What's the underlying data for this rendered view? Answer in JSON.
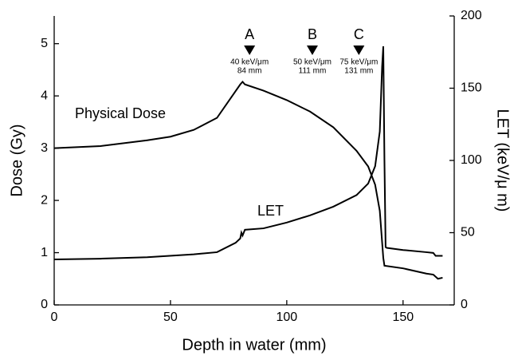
{
  "chart_data": {
    "type": "line",
    "x_label": "Depth in water (mm)",
    "y_label": "Dose (Gy)",
    "y2_label": "LET (keV/μ m)",
    "xlim": [
      0,
      172
    ],
    "xticks": [
      0,
      50,
      100,
      150
    ],
    "ylim": [
      0,
      5.53
    ],
    "yticks": [
      0,
      1,
      2,
      3,
      4,
      5
    ],
    "y2lim": [
      0,
      200
    ],
    "y2ticks": [
      0,
      50,
      100,
      150,
      200
    ],
    "series": [
      {
        "name": "Physical Dose",
        "color": "#000000",
        "axis": "y",
        "x": [
          0,
          20,
          40,
          50,
          60,
          70,
          75,
          80,
          81,
          82,
          90,
          100,
          110,
          120,
          130,
          135,
          138,
          140,
          141,
          141.5,
          142,
          150,
          160,
          163,
          165,
          167
        ],
        "values": [
          3.0,
          3.04,
          3.15,
          3.22,
          3.35,
          3.58,
          3.9,
          4.22,
          4.27,
          4.22,
          4.1,
          3.92,
          3.7,
          3.4,
          2.95,
          2.65,
          2.3,
          1.8,
          1.2,
          0.9,
          0.75,
          0.7,
          0.6,
          0.58,
          0.5,
          0.52
        ]
      },
      {
        "name": "LET",
        "color": "#000000",
        "axis": "y2",
        "x": [
          0,
          20,
          40,
          60,
          70,
          78,
          80,
          80.5,
          81,
          82,
          90,
          100,
          110,
          120,
          130,
          135,
          138,
          140,
          141,
          141.5,
          142,
          142.5,
          143,
          150,
          160,
          163,
          164,
          167
        ],
        "values": [
          31.5,
          32,
          33,
          35,
          36.5,
          43,
          46,
          50,
          48,
          52,
          53,
          57,
          62,
          68,
          76,
          84,
          96,
          120,
          165,
          179,
          100,
          40,
          39.5,
          38,
          36.5,
          36,
          34,
          34
        ]
      }
    ],
    "markers": [
      {
        "label": "A",
        "x": 84,
        "lines": [
          "40 keV/μm",
          "84 mm"
        ]
      },
      {
        "label": "B",
        "x": 111,
        "lines": [
          "50 keV/μm",
          "111 mm"
        ]
      },
      {
        "label": "C",
        "x": 131,
        "lines": [
          "75 keV/μm",
          "131 mm"
        ]
      }
    ]
  }
}
